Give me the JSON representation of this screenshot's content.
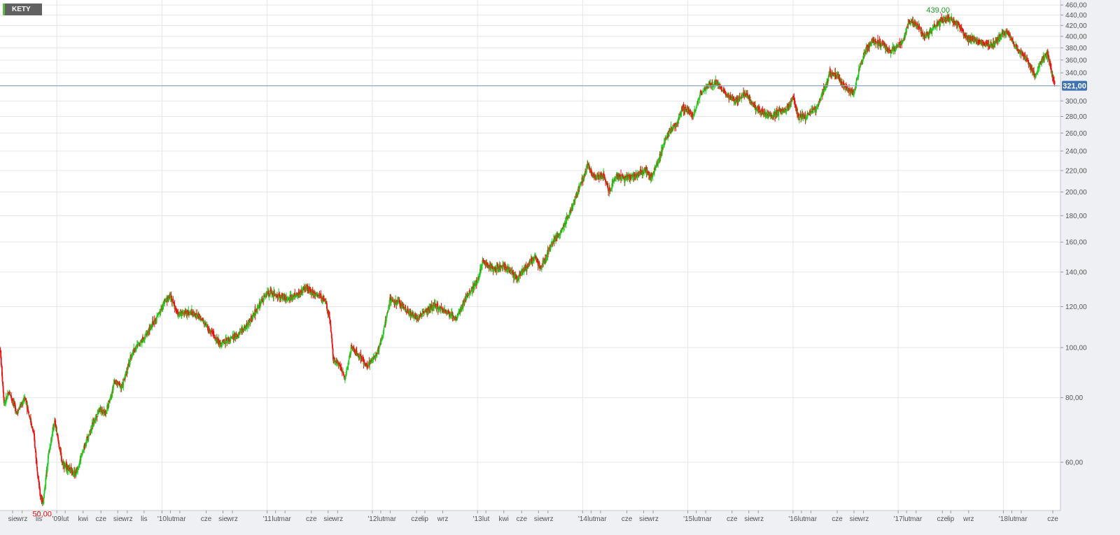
{
  "symbol_badge": "KETY",
  "colors": {
    "up": "#1fcc1f",
    "down": "#ee1111",
    "price_line": "#8fa6be",
    "current_label_bg": "#3f73b1",
    "max_label": "#1b9a1b",
    "min_label": "#ee1111"
  },
  "chart_data": {
    "type": "candlestick",
    "title": "",
    "xlabel": "",
    "ylabel": "",
    "y_scale": "log",
    "ylim": [
      44,
      460
    ],
    "y_ticks": [
      "460,00",
      "440,00",
      "420,00",
      "400,00",
      "380,00",
      "360,00",
      "340,00",
      "300,00",
      "280,00",
      "260,00",
      "240,00",
      "220,00",
      "200,00",
      "180,00",
      "160,00",
      "140,00",
      "120,00",
      "100,00",
      "80,00",
      "60,00"
    ],
    "x_ticks": [
      "sie",
      "wrz",
      "lis",
      "'09",
      "lut",
      "kwi",
      "cze",
      "sie",
      "wrz",
      "lis",
      "'10",
      "lut",
      "mar",
      "cze",
      "sie",
      "wrz",
      "'11",
      "lut",
      "mar",
      "cze",
      "sie",
      "wrz",
      "'12",
      "lut",
      "mar",
      "cze",
      "lip",
      "wrz",
      "'13",
      "lut",
      "kwi",
      "cze",
      "sie",
      "wrz",
      "'14",
      "lut",
      "mar",
      "cze",
      "sie",
      "wrz",
      "'15",
      "lut",
      "mar",
      "cze",
      "sie",
      "wrz",
      "'16",
      "lut",
      "mar",
      "cze",
      "sie",
      "wrz",
      "'17",
      "lut",
      "mar",
      "cze",
      "lip",
      "wrz",
      "'18",
      "lut",
      "mar",
      "cze"
    ],
    "x_tick_years": [
      2008.58,
      2008.67,
      2008.83,
      2009.0,
      2009.08,
      2009.25,
      2009.42,
      2009.58,
      2009.67,
      2009.83,
      2010.0,
      2010.08,
      2010.17,
      2010.42,
      2010.58,
      2010.67,
      2011.0,
      2011.08,
      2011.17,
      2011.42,
      2011.58,
      2011.67,
      2012.0,
      2012.08,
      2012.17,
      2012.42,
      2012.5,
      2012.67,
      2013.0,
      2013.08,
      2013.25,
      2013.42,
      2013.58,
      2013.67,
      2014.0,
      2014.08,
      2014.17,
      2014.42,
      2014.58,
      2014.67,
      2015.0,
      2015.08,
      2015.17,
      2015.42,
      2015.58,
      2015.67,
      2016.0,
      2016.08,
      2016.17,
      2016.42,
      2016.58,
      2016.67,
      2017.0,
      2017.08,
      2017.17,
      2017.42,
      2017.5,
      2017.67,
      2018.0,
      2018.08,
      2018.17,
      2018.47
    ],
    "price_path": [
      [
        2008.46,
        100
      ],
      [
        2008.5,
        78
      ],
      [
        2008.55,
        82
      ],
      [
        2008.62,
        75
      ],
      [
        2008.7,
        80
      ],
      [
        2008.78,
        68
      ],
      [
        2008.84,
        52
      ],
      [
        2008.87,
        50
      ],
      [
        2008.92,
        62
      ],
      [
        2008.98,
        72
      ],
      [
        2009.05,
        60
      ],
      [
        2009.12,
        58
      ],
      [
        2009.18,
        57
      ],
      [
        2009.28,
        66
      ],
      [
        2009.4,
        76
      ],
      [
        2009.47,
        75
      ],
      [
        2009.55,
        86
      ],
      [
        2009.62,
        84
      ],
      [
        2009.72,
        98
      ],
      [
        2009.85,
        106
      ],
      [
        2009.95,
        114
      ],
      [
        2010.02,
        122
      ],
      [
        2010.08,
        126
      ],
      [
        2010.15,
        116
      ],
      [
        2010.25,
        117
      ],
      [
        2010.35,
        115
      ],
      [
        2010.45,
        108
      ],
      [
        2010.55,
        102
      ],
      [
        2010.7,
        105
      ],
      [
        2010.8,
        110
      ],
      [
        2010.9,
        118
      ],
      [
        2011.0,
        128
      ],
      [
        2011.1,
        126
      ],
      [
        2011.2,
        124
      ],
      [
        2011.3,
        127
      ],
      [
        2011.37,
        131
      ],
      [
        2011.45,
        127
      ],
      [
        2011.55,
        124
      ],
      [
        2011.6,
        112
      ],
      [
        2011.63,
        95
      ],
      [
        2011.7,
        92
      ],
      [
        2011.74,
        87
      ],
      [
        2011.8,
        100
      ],
      [
        2011.88,
        96
      ],
      [
        2011.95,
        92
      ],
      [
        2012.05,
        98
      ],
      [
        2012.1,
        106
      ],
      [
        2012.17,
        124
      ],
      [
        2012.25,
        122
      ],
      [
        2012.35,
        117
      ],
      [
        2012.42,
        114
      ],
      [
        2012.5,
        117
      ],
      [
        2012.6,
        121
      ],
      [
        2012.7,
        117
      ],
      [
        2012.8,
        114
      ],
      [
        2012.9,
        126
      ],
      [
        2013.0,
        134
      ],
      [
        2013.05,
        147
      ],
      [
        2013.15,
        142
      ],
      [
        2013.25,
        144
      ],
      [
        2013.32,
        140
      ],
      [
        2013.38,
        136
      ],
      [
        2013.45,
        142
      ],
      [
        2013.55,
        150
      ],
      [
        2013.6,
        142
      ],
      [
        2013.7,
        158
      ],
      [
        2013.8,
        168
      ],
      [
        2013.88,
        183
      ],
      [
        2013.95,
        200
      ],
      [
        2014.0,
        212
      ],
      [
        2014.05,
        225
      ],
      [
        2014.1,
        215
      ],
      [
        2014.2,
        215
      ],
      [
        2014.25,
        200
      ],
      [
        2014.32,
        215
      ],
      [
        2014.4,
        212
      ],
      [
        2014.5,
        215
      ],
      [
        2014.6,
        220
      ],
      [
        2014.65,
        212
      ],
      [
        2014.72,
        230
      ],
      [
        2014.8,
        258
      ],
      [
        2014.9,
        272
      ],
      [
        2014.95,
        292
      ],
      [
        2015.0,
        288
      ],
      [
        2015.05,
        280
      ],
      [
        2015.12,
        310
      ],
      [
        2015.2,
        322
      ],
      [
        2015.28,
        325
      ],
      [
        2015.35,
        310
      ],
      [
        2015.45,
        300
      ],
      [
        2015.55,
        310
      ],
      [
        2015.6,
        298
      ],
      [
        2015.7,
        285
      ],
      [
        2015.8,
        280
      ],
      [
        2015.85,
        285
      ],
      [
        2015.95,
        290
      ],
      [
        2016.0,
        305
      ],
      [
        2016.05,
        280
      ],
      [
        2016.12,
        280
      ],
      [
        2016.22,
        290
      ],
      [
        2016.3,
        318
      ],
      [
        2016.35,
        338
      ],
      [
        2016.42,
        335
      ],
      [
        2016.5,
        318
      ],
      [
        2016.58,
        310
      ],
      [
        2016.62,
        340
      ],
      [
        2016.68,
        372
      ],
      [
        2016.75,
        392
      ],
      [
        2016.85,
        388
      ],
      [
        2016.92,
        372
      ],
      [
        2016.98,
        380
      ],
      [
        2017.05,
        392
      ],
      [
        2017.1,
        428
      ],
      [
        2017.18,
        420
      ],
      [
        2017.25,
        400
      ],
      [
        2017.32,
        410
      ],
      [
        2017.4,
        428
      ],
      [
        2017.47,
        432
      ],
      [
        2017.52,
        430
      ],
      [
        2017.58,
        420
      ],
      [
        2017.65,
        395
      ],
      [
        2017.75,
        392
      ],
      [
        2017.85,
        386
      ],
      [
        2017.92,
        388
      ],
      [
        2018.0,
        406
      ],
      [
        2018.05,
        405
      ],
      [
        2018.1,
        385
      ],
      [
        2018.18,
        370
      ],
      [
        2018.25,
        352
      ],
      [
        2018.3,
        335
      ],
      [
        2018.35,
        355
      ],
      [
        2018.42,
        370
      ],
      [
        2018.45,
        345
      ],
      [
        2018.49,
        321
      ]
    ],
    "max": {
      "label": "439,00",
      "year": 2017.38,
      "value": 439
    },
    "min": {
      "label": "50,00",
      "year": 2008.86,
      "value": 50
    },
    "last": {
      "label": "321,00",
      "value": 321
    }
  }
}
